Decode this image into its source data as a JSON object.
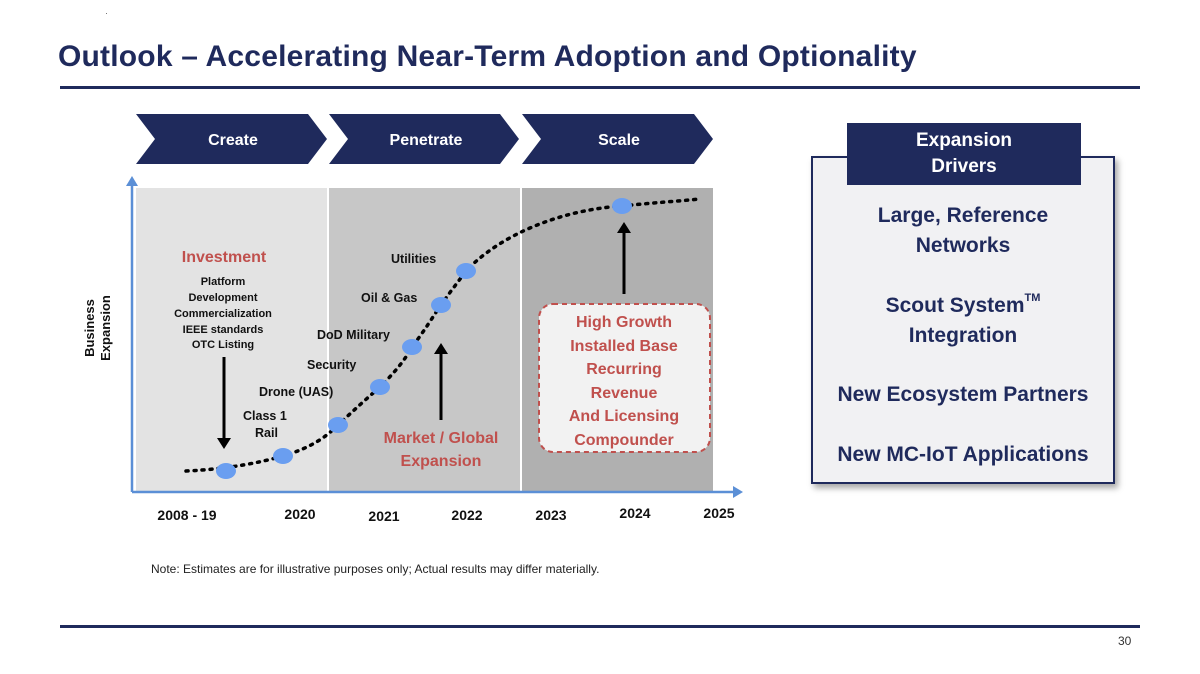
{
  "title": "Outlook – Accelerating Near-Term Adoption and Optionality",
  "phases": [
    {
      "label": "Create"
    },
    {
      "label": "Penetrate"
    },
    {
      "label": "Scale"
    }
  ],
  "chart": {
    "y_axis_label_line1": "Business",
    "y_axis_label_line2": "Expansion",
    "x_ticks": [
      "2008 - 19",
      "2020",
      "2021",
      "2022",
      "2023",
      "2024",
      "2025"
    ],
    "investment": {
      "heading": "Investment",
      "items": [
        "Platform",
        "Development",
        "Commercialization",
        "IEEE standards",
        "OTC Listing"
      ]
    },
    "milestones": [
      "Class 1",
      "Rail",
      "Drone (UAS)",
      "Security",
      "DoD Military",
      "Oil & Gas",
      "Utilities"
    ],
    "market_line1": "Market / Global",
    "market_line2": "Expansion",
    "growth_box": [
      "High Growth",
      "Installed Base",
      "Recurring",
      "Revenue",
      "And Licensing",
      "Compounder"
    ]
  },
  "drivers": {
    "header_line1": "Expansion",
    "header_line2": "Drivers",
    "item1_line1": "Large, Reference",
    "item1_line2": "Networks",
    "item2_line1": "Scout System",
    "item2_tm": "TM",
    "item2_line2": "Integration",
    "item3": "New Ecosystem Partners",
    "item4": "New MC-IoT Applications"
  },
  "note": "Note: Estimates are for illustrative purposes only; Actual results may differ materially.",
  "page_number": "30"
}
